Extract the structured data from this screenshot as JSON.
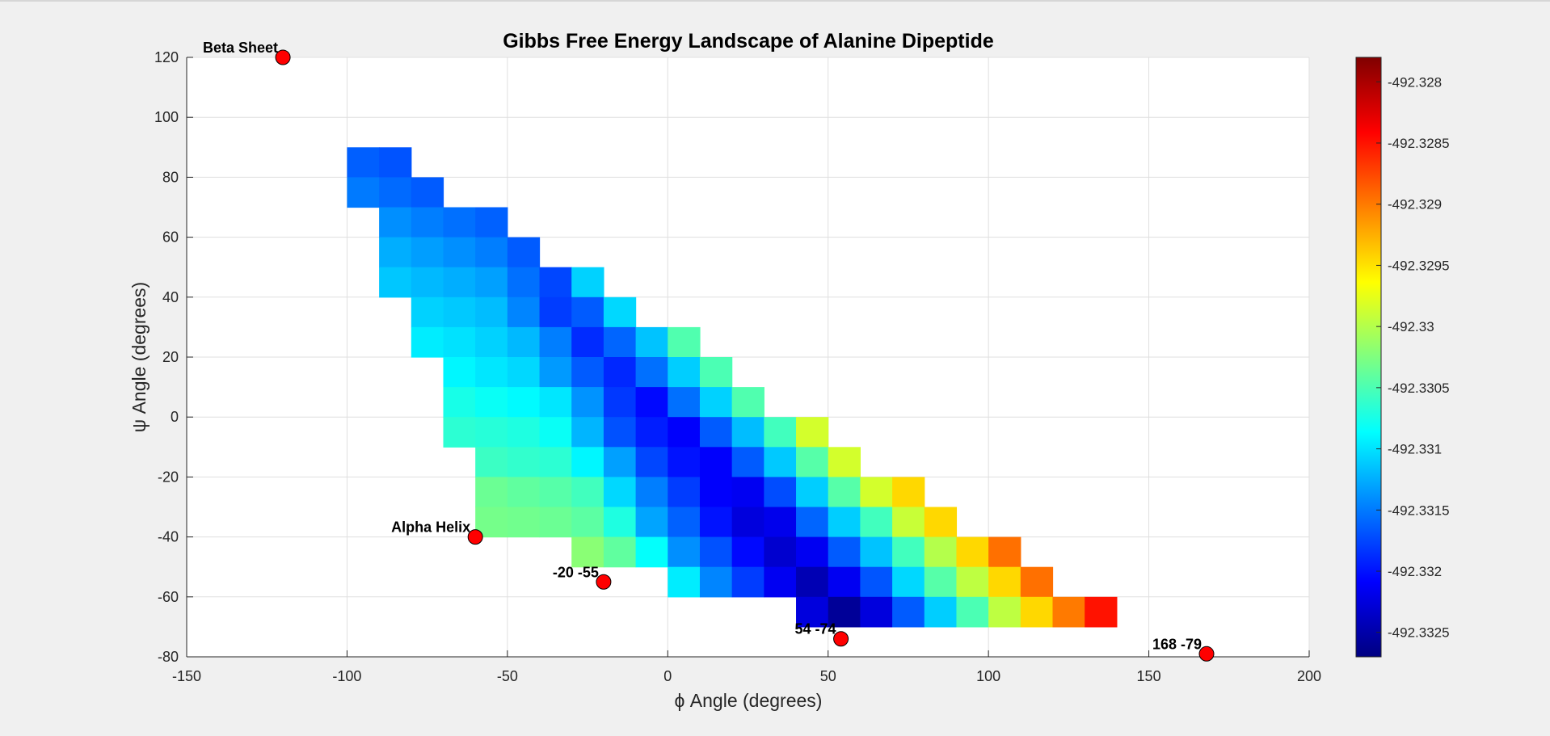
{
  "chart_data": {
    "type": "heatmap",
    "title": "Gibbs Free Energy Landscape of Alanine Dipeptide",
    "xlabel": "ϕ Angle (degrees)",
    "ylabel": "ψ Angle (degrees)",
    "xlim": [
      -150,
      200
    ],
    "ylim": [
      -80,
      120
    ],
    "xticks": [
      "-150",
      "-100",
      "-50",
      "0",
      "50",
      "100",
      "150",
      "200"
    ],
    "yticks": [
      "120",
      "100",
      "80",
      "60",
      "40",
      "20",
      "0",
      "-20",
      "-40",
      "-60",
      "-80"
    ],
    "grid": true,
    "cell_size": 10,
    "colormap": "jet",
    "colorbar": {
      "min": -492.3327,
      "max": -492.3278,
      "ticks": [
        "-492.328",
        "-492.3285",
        "-492.329",
        "-492.3295",
        "-492.33",
        "-492.3305",
        "-492.331",
        "-492.3315",
        "-492.332",
        "-492.3325"
      ]
    },
    "cells": [
      [
        -100,
        80,
        -492.33163
      ],
      [
        -90,
        80,
        -492.33169
      ],
      [
        -100,
        70,
        -492.3315
      ],
      [
        -90,
        70,
        -492.33158
      ],
      [
        -80,
        70,
        -492.33165
      ],
      [
        -90,
        60,
        -492.3314
      ],
      [
        -80,
        60,
        -492.33148
      ],
      [
        -70,
        60,
        -492.33155
      ],
      [
        -60,
        60,
        -492.33162
      ],
      [
        -90,
        50,
        -492.33125
      ],
      [
        -80,
        50,
        -492.33133
      ],
      [
        -70,
        50,
        -492.3314
      ],
      [
        -60,
        50,
        -492.33148
      ],
      [
        -50,
        50,
        -492.33165
      ],
      [
        -90,
        40,
        -492.33113
      ],
      [
        -80,
        40,
        -492.3312
      ],
      [
        -70,
        40,
        -492.33125
      ],
      [
        -60,
        40,
        -492.33132
      ],
      [
        -50,
        40,
        -492.33155
      ],
      [
        -40,
        40,
        -492.33175
      ],
      [
        -30,
        40,
        -492.33108
      ],
      [
        -80,
        30,
        -492.33108
      ],
      [
        -70,
        30,
        -492.33112
      ],
      [
        -60,
        30,
        -492.33118
      ],
      [
        -50,
        30,
        -492.33145
      ],
      [
        -40,
        30,
        -492.3318
      ],
      [
        -30,
        30,
        -492.33165
      ],
      [
        -20,
        30,
        -492.33105
      ],
      [
        -80,
        20,
        -492.33095
      ],
      [
        -70,
        20,
        -492.331
      ],
      [
        -60,
        20,
        -492.33108
      ],
      [
        -50,
        20,
        -492.3312
      ],
      [
        -40,
        20,
        -492.33148
      ],
      [
        -30,
        20,
        -492.33188
      ],
      [
        -20,
        20,
        -492.3316
      ],
      [
        -10,
        20,
        -492.33115
      ],
      [
        0,
        20,
        -492.33048
      ],
      [
        -70,
        10,
        -492.3309
      ],
      [
        -60,
        10,
        -492.33098
      ],
      [
        -50,
        10,
        -492.33105
      ],
      [
        -40,
        10,
        -492.33135
      ],
      [
        -30,
        10,
        -492.33165
      ],
      [
        -20,
        10,
        -492.3319
      ],
      [
        -10,
        10,
        -492.33155
      ],
      [
        0,
        10,
        -492.3311
      ],
      [
        10,
        10,
        -492.3305
      ],
      [
        -70,
        0,
        -492.33075
      ],
      [
        -60,
        0,
        -492.33082
      ],
      [
        -50,
        0,
        -492.33088
      ],
      [
        -40,
        0,
        -492.33098
      ],
      [
        -30,
        0,
        -492.33138
      ],
      [
        -20,
        0,
        -492.33182
      ],
      [
        -10,
        0,
        -492.33205
      ],
      [
        0,
        0,
        -492.33155
      ],
      [
        10,
        0,
        -492.33108
      ],
      [
        20,
        0,
        -492.33048
      ],
      [
        -70,
        -10,
        -492.33065
      ],
      [
        -60,
        -10,
        -492.33068
      ],
      [
        -50,
        -10,
        -492.33072
      ],
      [
        -40,
        -10,
        -492.33082
      ],
      [
        -30,
        -10,
        -492.33122
      ],
      [
        -20,
        -10,
        -492.3317
      ],
      [
        -10,
        -10,
        -492.33195
      ],
      [
        0,
        -10,
        -492.3321
      ],
      [
        10,
        -10,
        -492.33165
      ],
      [
        20,
        -10,
        -492.33118
      ],
      [
        30,
        -10,
        -492.33055
      ],
      [
        40,
        -10,
        -492.32985
      ],
      [
        -60,
        -20,
        -492.33058
      ],
      [
        -50,
        -20,
        -492.33062
      ],
      [
        -40,
        -20,
        -492.33065
      ],
      [
        -30,
        -20,
        -492.3309
      ],
      [
        -20,
        -20,
        -492.33132
      ],
      [
        -10,
        -20,
        -492.33175
      ],
      [
        0,
        -20,
        -492.332
      ],
      [
        10,
        -20,
        -492.3321
      ],
      [
        20,
        -20,
        -492.33165
      ],
      [
        30,
        -20,
        -492.33112
      ],
      [
        40,
        -20,
        -492.33045
      ],
      [
        50,
        -20,
        -492.32985
      ],
      [
        -60,
        -30,
        -492.33035
      ],
      [
        -50,
        -30,
        -492.3304
      ],
      [
        -40,
        -30,
        -492.33045
      ],
      [
        -30,
        -30,
        -492.33055
      ],
      [
        -20,
        -30,
        -492.33105
      ],
      [
        -10,
        -30,
        -492.33148
      ],
      [
        0,
        -30,
        -492.3318
      ],
      [
        10,
        -30,
        -492.3321
      ],
      [
        20,
        -30,
        -492.33215
      ],
      [
        30,
        -30,
        -492.33172
      ],
      [
        40,
        -30,
        -492.3311
      ],
      [
        50,
        -30,
        -492.33045
      ],
      [
        60,
        -30,
        -492.32985
      ],
      [
        70,
        -30,
        -492.32945
      ],
      [
        -60,
        -40,
        -492.3303
      ],
      [
        -50,
        -40,
        -492.33032
      ],
      [
        -40,
        -40,
        -492.33035
      ],
      [
        -30,
        -40,
        -492.33042
      ],
      [
        -20,
        -40,
        -492.33072
      ],
      [
        -10,
        -40,
        -492.3313
      ],
      [
        0,
        -40,
        -492.33162
      ],
      [
        10,
        -40,
        -492.332
      ],
      [
        20,
        -40,
        -492.33225
      ],
      [
        30,
        -40,
        -492.33218
      ],
      [
        40,
        -40,
        -492.3316
      ],
      [
        50,
        -40,
        -492.3311
      ],
      [
        60,
        -40,
        -492.33055
      ],
      [
        70,
        -40,
        -492.3299
      ],
      [
        80,
        -40,
        -492.32945
      ],
      [
        -30,
        -50,
        -492.3302
      ],
      [
        -20,
        -50,
        -492.3304
      ],
      [
        -10,
        -50,
        -492.33085
      ],
      [
        0,
        -50,
        -492.3314
      ],
      [
        10,
        -50,
        -492.3317
      ],
      [
        20,
        -50,
        -492.33205
      ],
      [
        30,
        -50,
        -492.33232
      ],
      [
        40,
        -50,
        -492.33215
      ],
      [
        50,
        -50,
        -492.33165
      ],
      [
        60,
        -50,
        -492.33115
      ],
      [
        70,
        -50,
        -492.33055
      ],
      [
        80,
        -50,
        -492.33
      ],
      [
        90,
        -50,
        -492.32945
      ],
      [
        100,
        -50,
        -492.32895
      ],
      [
        0,
        -60,
        -492.33095
      ],
      [
        10,
        -60,
        -492.33145
      ],
      [
        20,
        -60,
        -492.3318
      ],
      [
        30,
        -60,
        -492.33215
      ],
      [
        40,
        -60,
        -492.33245
      ],
      [
        50,
        -60,
        -492.33215
      ],
      [
        60,
        -60,
        -492.33168
      ],
      [
        70,
        -60,
        -492.33105
      ],
      [
        80,
        -60,
        -492.33045
      ],
      [
        90,
        -60,
        -492.32995
      ],
      [
        100,
        -60,
        -492.32945
      ],
      [
        110,
        -60,
        -492.32895
      ],
      [
        40,
        -70,
        -492.33225
      ],
      [
        50,
        -70,
        -492.33258
      ],
      [
        60,
        -70,
        -492.33225
      ],
      [
        70,
        -70,
        -492.33165
      ],
      [
        80,
        -70,
        -492.3311
      ],
      [
        90,
        -70,
        -492.3305
      ],
      [
        100,
        -70,
        -492.32995
      ],
      [
        110,
        -70,
        -492.32945
      ],
      [
        120,
        -70,
        -492.329
      ],
      [
        130,
        -70,
        -492.3285
      ]
    ],
    "points": [
      {
        "x": -120,
        "y": 120,
        "label": "Beta Sheet"
      },
      {
        "x": -60,
        "y": -40,
        "label": "Alpha Helix"
      },
      {
        "x": -20,
        "y": -55,
        "label": "-20 -55"
      },
      {
        "x": 54,
        "y": -74,
        "label": "54 -74"
      },
      {
        "x": 168,
        "y": -79,
        "label": "168 -79"
      }
    ],
    "point_color": "#ff0000"
  }
}
